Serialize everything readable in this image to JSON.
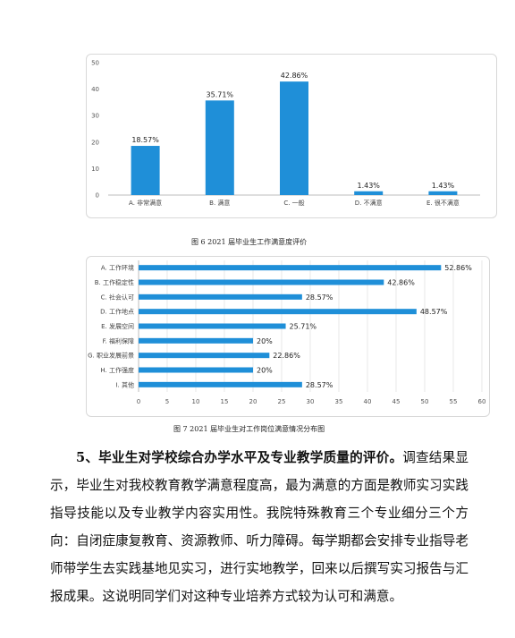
{
  "chart_data": [
    {
      "type": "bar",
      "categories": [
        "A. 非常满意",
        "B. 满意",
        "C. 一般",
        "D. 不满意",
        "E. 很不满意"
      ],
      "values": [
        18.57,
        35.71,
        42.86,
        1.43,
        1.43
      ],
      "data_labels": [
        "18.57%",
        "35.71%",
        "42.86%",
        "1.43%",
        "1.43%"
      ],
      "yticks": [
        "0",
        "10",
        "20",
        "30",
        "40",
        "50"
      ],
      "ylim": [
        0,
        50
      ],
      "color": "#1f8fd8",
      "grid": false
    },
    {
      "type": "bar",
      "orientation": "horizontal",
      "categories": [
        "A. 工作环境",
        "B. 工作稳定性",
        "C. 社会认可",
        "D. 工作地点",
        "E. 发展空间",
        "F. 福利保障",
        "G. 职业发展前景",
        "H. 工作强度",
        "I. 其他"
      ],
      "values": [
        52.86,
        42.86,
        28.57,
        48.57,
        25.71,
        20,
        22.86,
        20,
        28.57
      ],
      "data_labels": [
        "52.86%",
        "42.86%",
        "28.57%",
        "48.57%",
        "25.71%",
        "20%",
        "22.86%",
        "20%",
        "28.57%"
      ],
      "xticks": [
        "0",
        "5",
        "10",
        "15",
        "20",
        "25",
        "30",
        "35",
        "40",
        "45",
        "50",
        "55",
        "60"
      ],
      "xlim": [
        0,
        60
      ],
      "color": "#1f8fd8",
      "grid": true
    }
  ],
  "captions": {
    "fig6": "图 6   2021 届毕业生工作满意度评价",
    "fig7": "图 7   2021 届毕业生对工作岗位满意情况分布图"
  },
  "paragraph": {
    "heading": "5、毕业生对学校综合办学水平及专业教学质量的评价。",
    "body": "调查结果显示，毕业生对我校教育教学满意程度高，最为满意的方面是教师实习实践指导技能以及专业教学内容实用性。我院特殊教育三个专业细分三个方向：自闭症康复教育、资源教师、听力障碍。每学期都会安排专业指导老师带学生去实践基地见实习，进行实地教学，回来以后撰写实习报告与汇报成果。这说明同学们对这种专业培养方式较为认可和满意。"
  }
}
